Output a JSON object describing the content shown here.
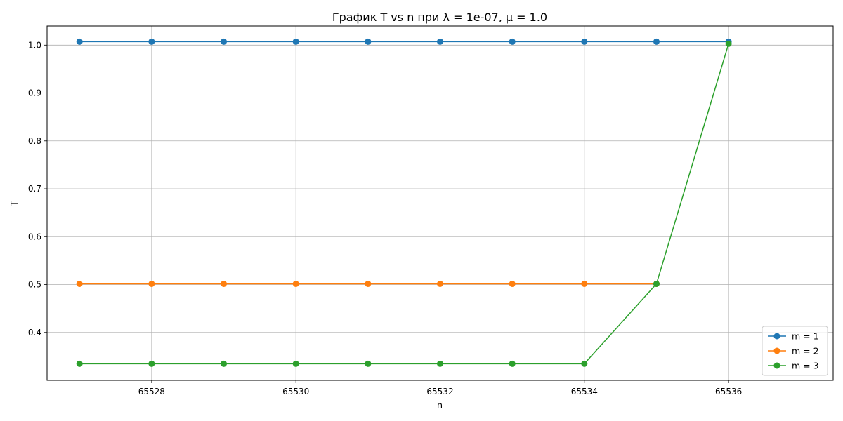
{
  "chart_data": {
    "type": "line",
    "title": "График T vs n при λ = 1e-07, μ = 1.0",
    "xlabel": "n",
    "ylabel": "T",
    "x": [
      65527,
      65528,
      65529,
      65530,
      65531,
      65532,
      65533,
      65534,
      65535,
      65536
    ],
    "xlim": [
      65526.55,
      65537.45
    ],
    "ylim": [
      0.3,
      1.04
    ],
    "xticks": [
      65528,
      65530,
      65532,
      65534,
      65536
    ],
    "xtick_labels": [
      "65528",
      "65530",
      "65532",
      "65534",
      "65536"
    ],
    "yticks": [
      0.4,
      0.5,
      0.6,
      0.7,
      0.8,
      0.9,
      1.0
    ],
    "ytick_labels": [
      "0.4",
      "0.5",
      "0.6",
      "0.7",
      "0.8",
      "0.9",
      "1.0"
    ],
    "grid": true,
    "legend_position": "lower-right",
    "series": [
      {
        "name": "m = 1",
        "color": "#1f77b4",
        "values": [
          1.0073,
          1.0073,
          1.0073,
          1.0073,
          1.0073,
          1.0073,
          1.0073,
          1.0073,
          1.0073,
          1.0073
        ]
      },
      {
        "name": "m = 2",
        "color": "#ff7f0e",
        "values": [
          0.5015,
          0.5015,
          0.5015,
          0.5015,
          0.5015,
          0.5015,
          0.5015,
          0.5015,
          0.5015,
          null
        ]
      },
      {
        "name": "m = 3",
        "color": "#2ca02c",
        "values": [
          0.3347,
          0.3347,
          0.3347,
          0.3347,
          0.3347,
          0.3347,
          0.3347,
          0.3347,
          0.5015,
          1.0029
        ]
      }
    ]
  }
}
